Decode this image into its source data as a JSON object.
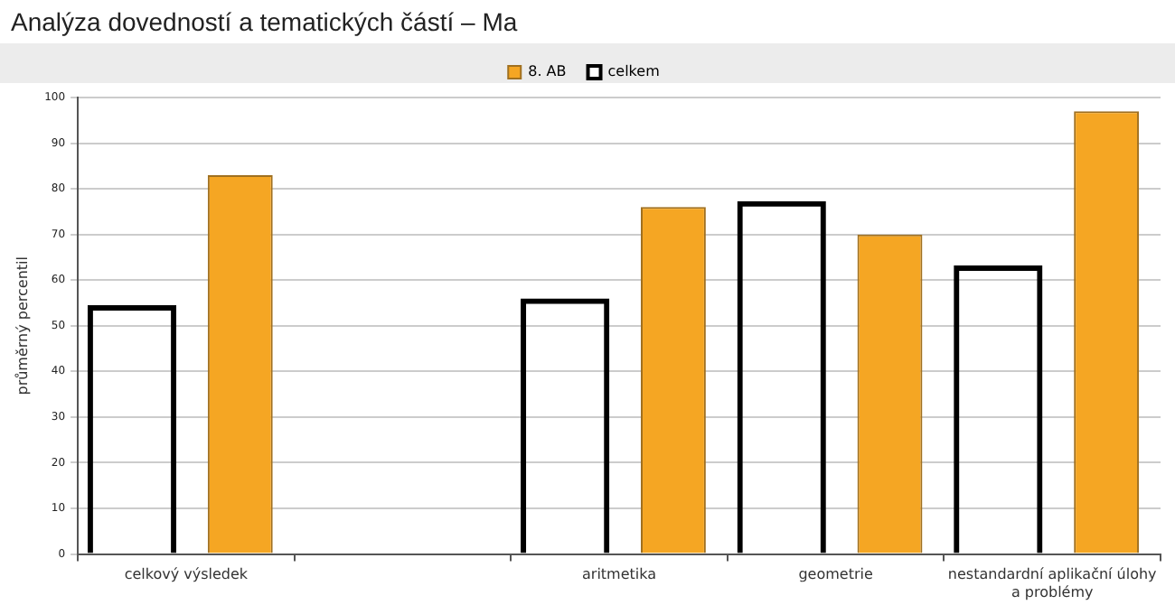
{
  "chart_data": {
    "type": "bar",
    "title": "Analýza dovedností a tematických částí – Ma",
    "ylabel": "průměrný percentil",
    "categories": [
      "celkový výsledek",
      null,
      "aritmetika",
      "geometrie",
      "nestandardní aplikační úlohy a problémy"
    ],
    "series": [
      {
        "name": "8. AB",
        "color": "#f5a623",
        "values": [
          83,
          null,
          76,
          70,
          97
        ]
      },
      {
        "name": "celkem",
        "color": "#000000",
        "values": [
          54.5,
          null,
          56,
          77.3,
          63.2
        ]
      }
    ],
    "ylim": [
      0,
      100
    ],
    "yticks": [
      0,
      10,
      20,
      30,
      40,
      50,
      60,
      70,
      80,
      90,
      100
    ],
    "grid": "y",
    "legend": "top"
  }
}
